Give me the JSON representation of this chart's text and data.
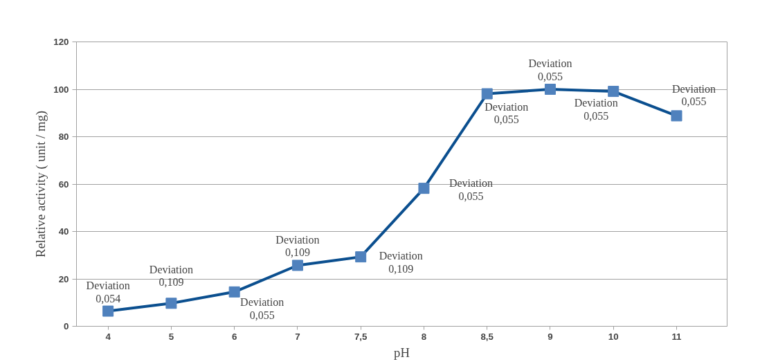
{
  "chart_data": {
    "type": "line",
    "xlabel": "pH",
    "ylabel": "Relative activity ( unit / mg)",
    "categories": [
      "4",
      "5",
      "6",
      "7",
      "7,5",
      "8",
      "8,5",
      "9",
      "10",
      "11"
    ],
    "series": [
      {
        "color": "#0b4f8f",
        "values": [
          6.4,
          9.7,
          14.5,
          25.7,
          29.3,
          58.2,
          98.1,
          100,
          99.1,
          88.8
        ]
      }
    ],
    "marker": "square",
    "line_style": "solid",
    "grid": "y",
    "ylim": [
      0,
      120
    ],
    "yticks": [
      0,
      20,
      40,
      60,
      80,
      100,
      120
    ],
    "annotations": [
      {
        "text": "Deviation\n0,054",
        "x": "4",
        "y": 6.4
      },
      {
        "text": "Deviation\n0,109",
        "x": "5",
        "y": 9.7
      },
      {
        "text": "Deviation\n0,055",
        "x": "6",
        "y": 14.5
      },
      {
        "text": "Deviation\n0,109",
        "x": "7",
        "y": 25.7
      },
      {
        "text": "Deviation\n0,109",
        "x": "7,5",
        "y": 29.3
      },
      {
        "text": "Deviation\n0,055",
        "x": "8",
        "y": 58.2
      },
      {
        "text": "Deviation\n0,055",
        "x": "8,5",
        "y": 98.1
      },
      {
        "text": "Deviation\n0,055",
        "x": "9",
        "y": 100
      },
      {
        "text": "Deviation\n0,055",
        "x": "10",
        "y": 99.1
      },
      {
        "text": "Deviation\n0,055",
        "x": "11",
        "y": 88.8
      }
    ]
  }
}
